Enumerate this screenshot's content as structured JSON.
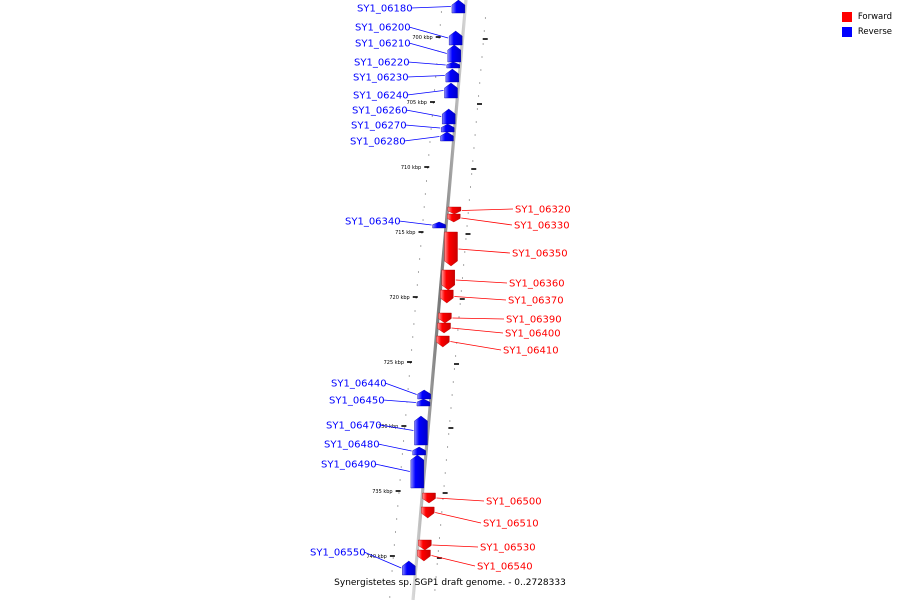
{
  "legend": {
    "forward_label": "Forward",
    "reverse_label": "Reverse",
    "forward_color": "#ff0000",
    "reverse_color": "#0000ff"
  },
  "caption": "Synergistetes sp. SGP1 draft genome. - 0..2728333",
  "ticks": [
    {
      "label": "700 kbp"
    },
    {
      "label": "705 kbp"
    },
    {
      "label": "710 kbp"
    },
    {
      "label": "715 kbp"
    },
    {
      "label": "720 kbp"
    },
    {
      "label": "725 kbp"
    },
    {
      "label": "730 kbp"
    },
    {
      "label": "735 kbp"
    },
    {
      "label": "740 kbp"
    }
  ],
  "genes": [
    {
      "name": "SY1_06180",
      "strand": "reverse"
    },
    {
      "name": "SY1_06200",
      "strand": "reverse"
    },
    {
      "name": "SY1_06210",
      "strand": "reverse"
    },
    {
      "name": "SY1_06220",
      "strand": "reverse"
    },
    {
      "name": "SY1_06230",
      "strand": "reverse"
    },
    {
      "name": "SY1_06240",
      "strand": "reverse"
    },
    {
      "name": "SY1_06260",
      "strand": "reverse"
    },
    {
      "name": "SY1_06270",
      "strand": "reverse"
    },
    {
      "name": "SY1_06280",
      "strand": "reverse"
    },
    {
      "name": "SY1_06320",
      "strand": "forward"
    },
    {
      "name": "SY1_06330",
      "strand": "forward"
    },
    {
      "name": "SY1_06340",
      "strand": "reverse"
    },
    {
      "name": "SY1_06350",
      "strand": "forward"
    },
    {
      "name": "SY1_06360",
      "strand": "forward"
    },
    {
      "name": "SY1_06370",
      "strand": "forward"
    },
    {
      "name": "SY1_06390",
      "strand": "forward"
    },
    {
      "name": "SY1_06400",
      "strand": "forward"
    },
    {
      "name": "SY1_06410",
      "strand": "forward"
    },
    {
      "name": "SY1_06440",
      "strand": "reverse"
    },
    {
      "name": "SY1_06450",
      "strand": "reverse"
    },
    {
      "name": "SY1_06470",
      "strand": "reverse"
    },
    {
      "name": "SY1_06480",
      "strand": "reverse"
    },
    {
      "name": "SY1_06490",
      "strand": "reverse"
    },
    {
      "name": "SY1_06500",
      "strand": "forward"
    },
    {
      "name": "SY1_06510",
      "strand": "forward"
    },
    {
      "name": "SY1_06530",
      "strand": "forward"
    },
    {
      "name": "SY1_06540",
      "strand": "forward"
    },
    {
      "name": "SY1_06550",
      "strand": "reverse"
    }
  ]
}
